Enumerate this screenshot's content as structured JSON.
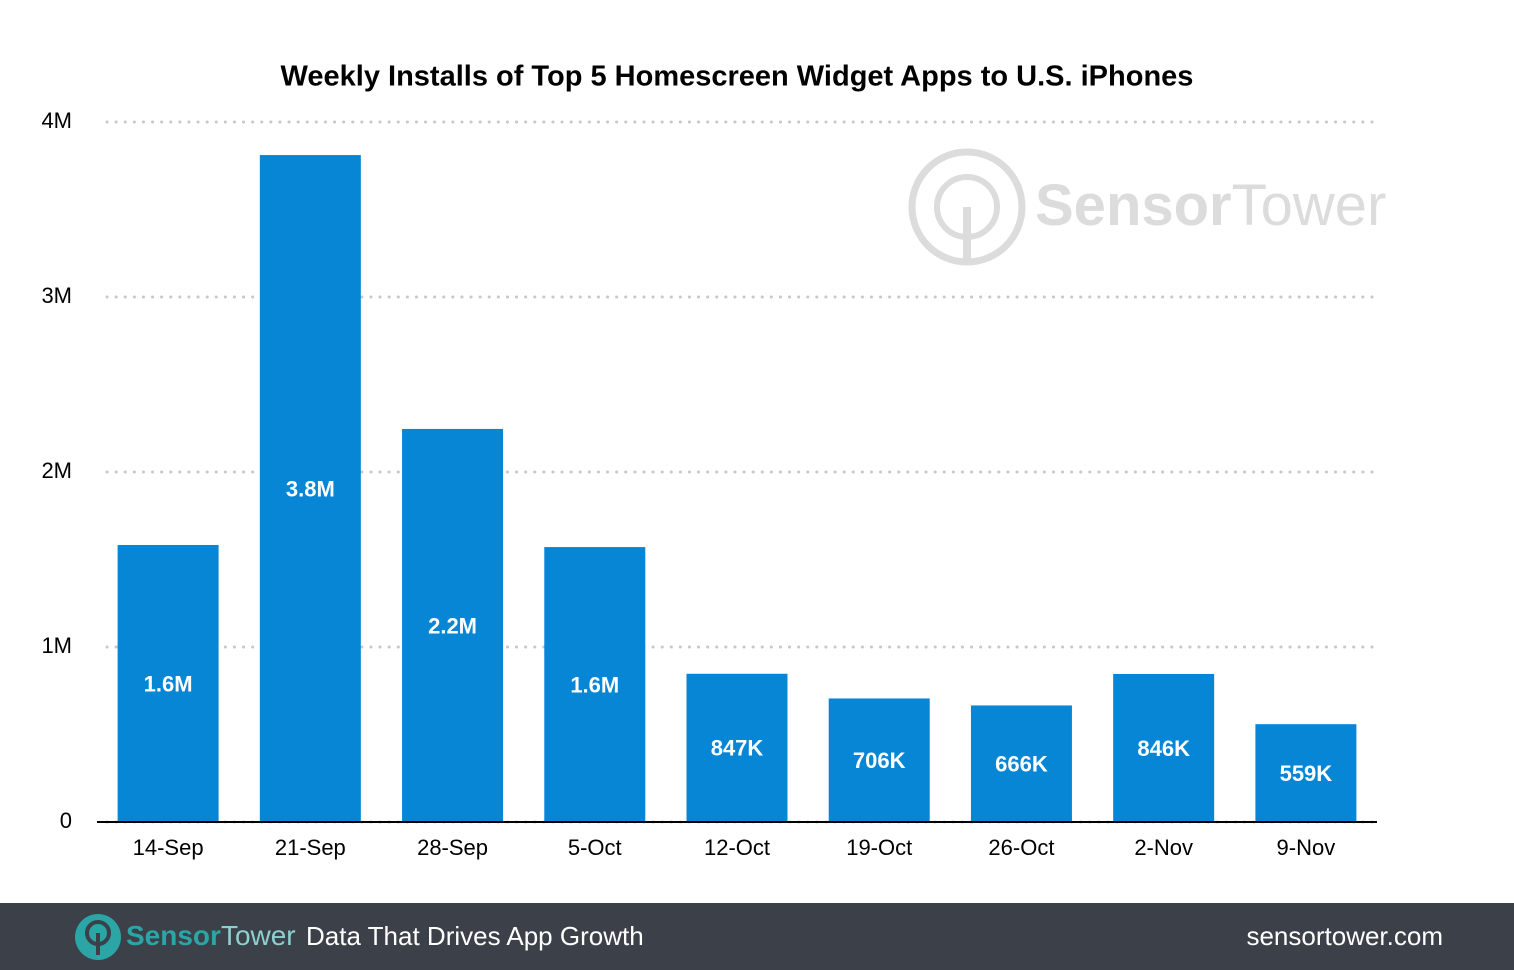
{
  "chart_data": {
    "type": "bar",
    "title": "Weekly Installs of Top 5 Homescreen Widget Apps to U.S. iPhones",
    "categories": [
      "14-Sep",
      "21-Sep",
      "28-Sep",
      "5-Oct",
      "12-Oct",
      "19-Oct",
      "26-Oct",
      "2-Nov",
      "9-Nov"
    ],
    "values": [
      1583000,
      3811000,
      2246000,
      1571000,
      847000,
      706000,
      666000,
      846000,
      559000
    ],
    "value_labels": [
      "1.6M",
      "3.8M",
      "2.2M",
      "1.6M",
      "847K",
      "706K",
      "666K",
      "846K",
      "559K"
    ],
    "color": "#0786d6",
    "ylim": [
      0,
      4000000
    ],
    "yticks": [
      0,
      {
        "value": 1000000,
        "label": "1M"
      },
      {
        "value": 2000000,
        "label": "2M"
      },
      {
        "value": 3000000,
        "label": "3M"
      },
      {
        "value": 4000000,
        "label": "4M"
      }
    ],
    "grid": true
  },
  "watermark": {
    "sensor": "Sensor",
    "tower": "Tower"
  },
  "footer": {
    "logo_sensor": "Sensor",
    "logo_tower": "Tower",
    "tagline": "Data That Drives App Growth",
    "url": "sensortower.com"
  }
}
